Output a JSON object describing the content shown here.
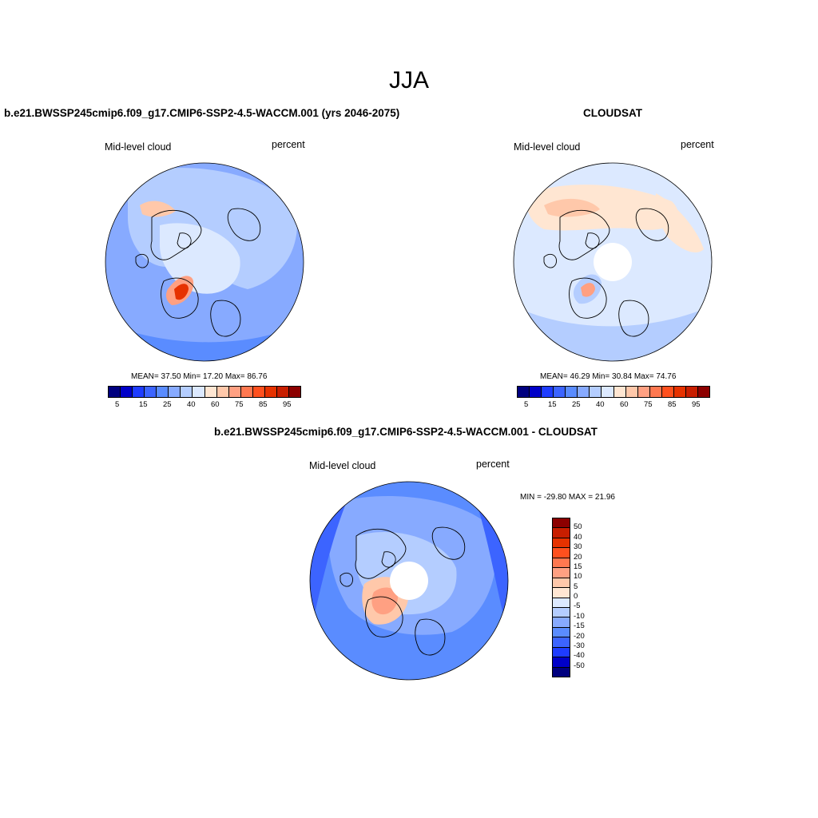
{
  "title": "JJA",
  "panels": [
    {
      "title": "b.e21.BWSSP245cmip6.f09_g17.CMIP6-SSP2-4.5-WACCM.001 (yrs 2046-2075)",
      "left_label": "Mid-level cloud",
      "right_label": "percent",
      "stats": "MEAN=  37.50  Min=  17.20  Max=  86.76",
      "has_hole": false
    },
    {
      "title": "CLOUDSAT",
      "left_label": "Mid-level cloud",
      "right_label": "percent",
      "stats": "MEAN=  46.29  Min=  30.84  Max=  74.76",
      "has_hole": true
    },
    {
      "title": "b.e21.BWSSP245cmip6.f09_g17.CMIP6-SSP2-4.5-WACCM.001 - CLOUDSAT",
      "left_label": "Mid-level cloud",
      "right_label": "percent",
      "stats": "MIN = -29.80 MAX =  21.96",
      "has_hole": true
    }
  ],
  "colorbar_abs": {
    "colors": [
      "#00007f",
      "#0000c8",
      "#1e3cff",
      "#3c64ff",
      "#5a8cff",
      "#87aaff",
      "#b4cdff",
      "#dce9ff",
      "#ffe6d2",
      "#ffc8aa",
      "#ffa082",
      "#ff7850",
      "#ff501e",
      "#e63200",
      "#c81e00",
      "#8c0000"
    ],
    "ticks": [
      "5",
      "15",
      "25",
      "40",
      "60",
      "75",
      "85",
      "95"
    ]
  },
  "colorbar_diff": {
    "colors": [
      "#8c0000",
      "#c81e00",
      "#e63200",
      "#ff501e",
      "#ff7850",
      "#ffa082",
      "#ffc8aa",
      "#ffe6d2",
      "#dce9ff",
      "#b4cdff",
      "#87aaff",
      "#5a8cff",
      "#3c64ff",
      "#1e3cff",
      "#0000c8",
      "#00007f"
    ],
    "ticks": [
      "50",
      "40",
      "30",
      "20",
      "15",
      "10",
      "5",
      "0",
      "-5",
      "-10",
      "-15",
      "-20",
      "-30",
      "-40",
      "-50"
    ]
  }
}
